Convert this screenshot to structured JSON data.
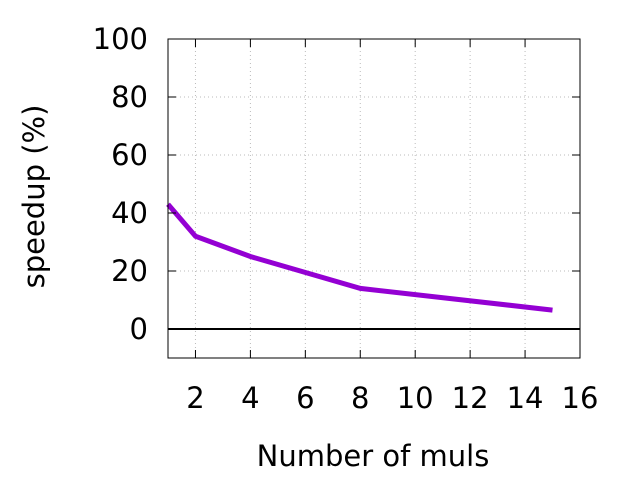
{
  "chart_data": {
    "type": "line",
    "title": "",
    "xlabel": "Number of muls",
    "ylabel": "speedup (%)",
    "xlim": [
      1,
      16
    ],
    "ylim": [
      -10,
      100
    ],
    "x_ticks": [
      2,
      4,
      6,
      8,
      10,
      12,
      14,
      16
    ],
    "y_ticks": [
      0,
      20,
      40,
      60,
      80,
      100
    ],
    "grid": true,
    "zero_line": true,
    "series": [
      {
        "color": "#9400d3",
        "x": [
          1,
          2,
          4,
          8,
          15
        ],
        "y": [
          43,
          32,
          25,
          14,
          6.5
        ]
      }
    ]
  }
}
